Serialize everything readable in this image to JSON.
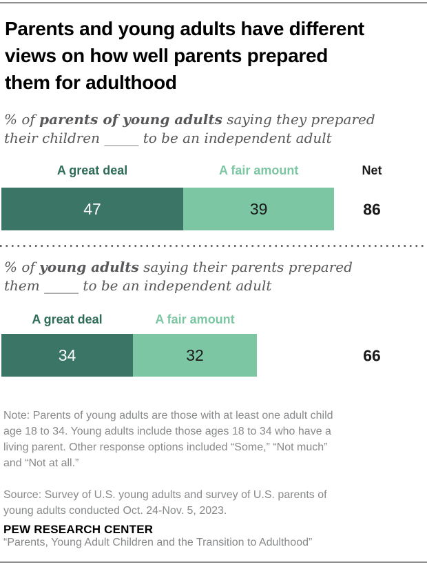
{
  "colors": {
    "dark_green": "#3B7565",
    "light_green": "#7CC6A3",
    "dark_green_text": "#2E6C59",
    "light_green_text": "#7CC6A3",
    "title_black": "#000000",
    "subtitle_gray": "#58585B",
    "note_gray": "#87898B",
    "value_black": "#1A1A1A",
    "value_white": "#FFFFFF",
    "rule_gray": "#8E8E8E",
    "dotted_gray": "#6B6B6B"
  },
  "header": {
    "title": "Parents and young adults have different\nviews on how well parents prepared\nthem for adulthood"
  },
  "chart_data": [
    {
      "type": "bar",
      "orientation": "horizontal",
      "stacked": true,
      "title": "% of parents of young adults saying they prepared their children _____ to be an independent adult",
      "subtitle_parts": {
        "prefix": "% of ",
        "bold": "parents of young adults",
        "suffix": " saying they prepared\ntheir children _____ to be an independent adult"
      },
      "categories": [
        "Parents of young adults"
      ],
      "series": [
        {
          "name": "A great deal",
          "values": [
            47
          ]
        },
        {
          "name": "A fair amount",
          "values": [
            39
          ]
        }
      ],
      "net_label": "Net",
      "net": [
        86
      ],
      "xlim": [
        0,
        100
      ]
    },
    {
      "type": "bar",
      "orientation": "horizontal",
      "stacked": true,
      "title": "% of young adults saying their parents prepared them _____ to be an independent adult",
      "subtitle_parts": {
        "prefix": "% of ",
        "bold": "young adults",
        "suffix": " saying their parents prepared\nthem _____ to be an independent adult"
      },
      "categories": [
        "Young adults"
      ],
      "series": [
        {
          "name": "A great deal",
          "values": [
            34
          ]
        },
        {
          "name": "A fair amount",
          "values": [
            32
          ]
        }
      ],
      "net": [
        66
      ],
      "xlim": [
        0,
        100
      ]
    }
  ],
  "notes": {
    "note": "Note: Parents of young adults are those with at least one adult child\nage 18 to 34. Young adults include those ages 18 to 34 who have a\nliving parent. Other response options included “Some,” “Not much”\nand “Not at all.”",
    "source": "Source: Survey of U.S. young adults and survey of U.S. parents of\nyoung adults conducted Oct. 24-Nov. 5, 2023.",
    "quote": "“Parents, Young Adult Children and the Transition to Adulthood”"
  },
  "footer": {
    "brand": "PEW RESEARCH CENTER"
  }
}
